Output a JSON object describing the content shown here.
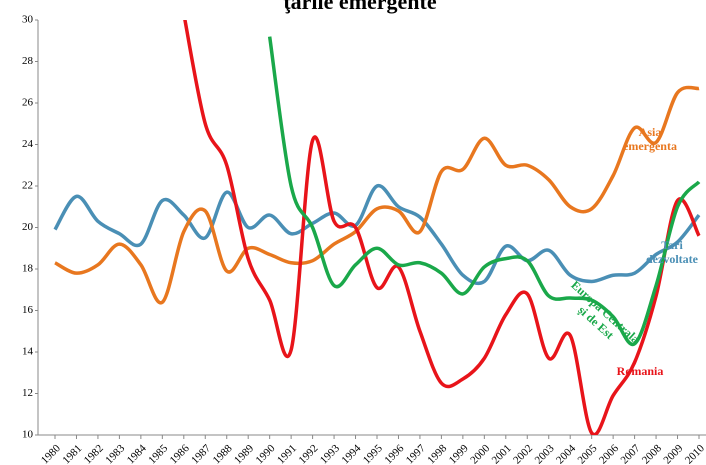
{
  "chart_data": {
    "type": "line",
    "title": "ţările emergente",
    "categories": [
      "1980",
      "1981",
      "1982",
      "1983",
      "1984",
      "1985",
      "1986",
      "1987",
      "1988",
      "1989",
      "1990",
      "1991",
      "1992",
      "1993",
      "1994",
      "1995",
      "1996",
      "1997",
      "1998",
      "1999",
      "2000",
      "2001",
      "2002",
      "2003",
      "2004",
      "2005",
      "2006",
      "2007",
      "2008",
      "2009",
      "2010"
    ],
    "ylim": [
      10,
      30
    ],
    "yticks": [
      10,
      12,
      14,
      16,
      18,
      20,
      22,
      24,
      26,
      28,
      30
    ],
    "series": [
      {
        "name": "Tari dezvoltate",
        "color": "#4a8fb5",
        "values": [
          19.9,
          21.5,
          20.3,
          19.7,
          19.2,
          21.3,
          20.6,
          19.5,
          21.7,
          20.0,
          20.6,
          19.7,
          20.2,
          20.7,
          20.1,
          22.0,
          21.0,
          20.5,
          19.2,
          17.7,
          17.4,
          19.1,
          18.4,
          18.9,
          17.7,
          17.4,
          17.7,
          17.8,
          18.7,
          19.3,
          20.6
        ]
      },
      {
        "name": "Asia emergenta",
        "color": "#e8771f",
        "values": [
          18.3,
          17.8,
          18.2,
          19.2,
          18.2,
          16.4,
          19.8,
          20.8,
          17.9,
          19.0,
          18.7,
          18.3,
          18.4,
          19.2,
          19.8,
          20.9,
          20.8,
          19.8,
          22.7,
          22.8,
          24.3,
          23.0,
          23.0,
          22.3,
          21.0,
          20.9,
          22.5,
          24.8,
          24.1,
          26.5,
          26.7
        ]
      },
      {
        "name": "Romania",
        "color": "#e8141a",
        "values": [
          null,
          null,
          null,
          null,
          null,
          null,
          30.3,
          25.0,
          23.0,
          18.5,
          16.5,
          14.1,
          24.2,
          20.3,
          20.0,
          17.1,
          18.1,
          15.0,
          12.5,
          12.7,
          13.7,
          15.8,
          16.8,
          13.7,
          14.8,
          10.1,
          11.9,
          13.5,
          16.7,
          21.3,
          19.6
        ]
      },
      {
        "name": "Europa Centrala şi de Est",
        "color": "#1aa84a",
        "values": [
          null,
          null,
          null,
          null,
          null,
          null,
          null,
          null,
          null,
          null,
          29.2,
          22.0,
          20.0,
          17.2,
          18.2,
          19.0,
          18.2,
          18.3,
          17.8,
          16.8,
          18.1,
          18.5,
          18.4,
          16.7,
          16.6,
          16.5,
          15.7,
          14.4,
          17.2,
          21.0,
          22.2
        ]
      }
    ]
  }
}
